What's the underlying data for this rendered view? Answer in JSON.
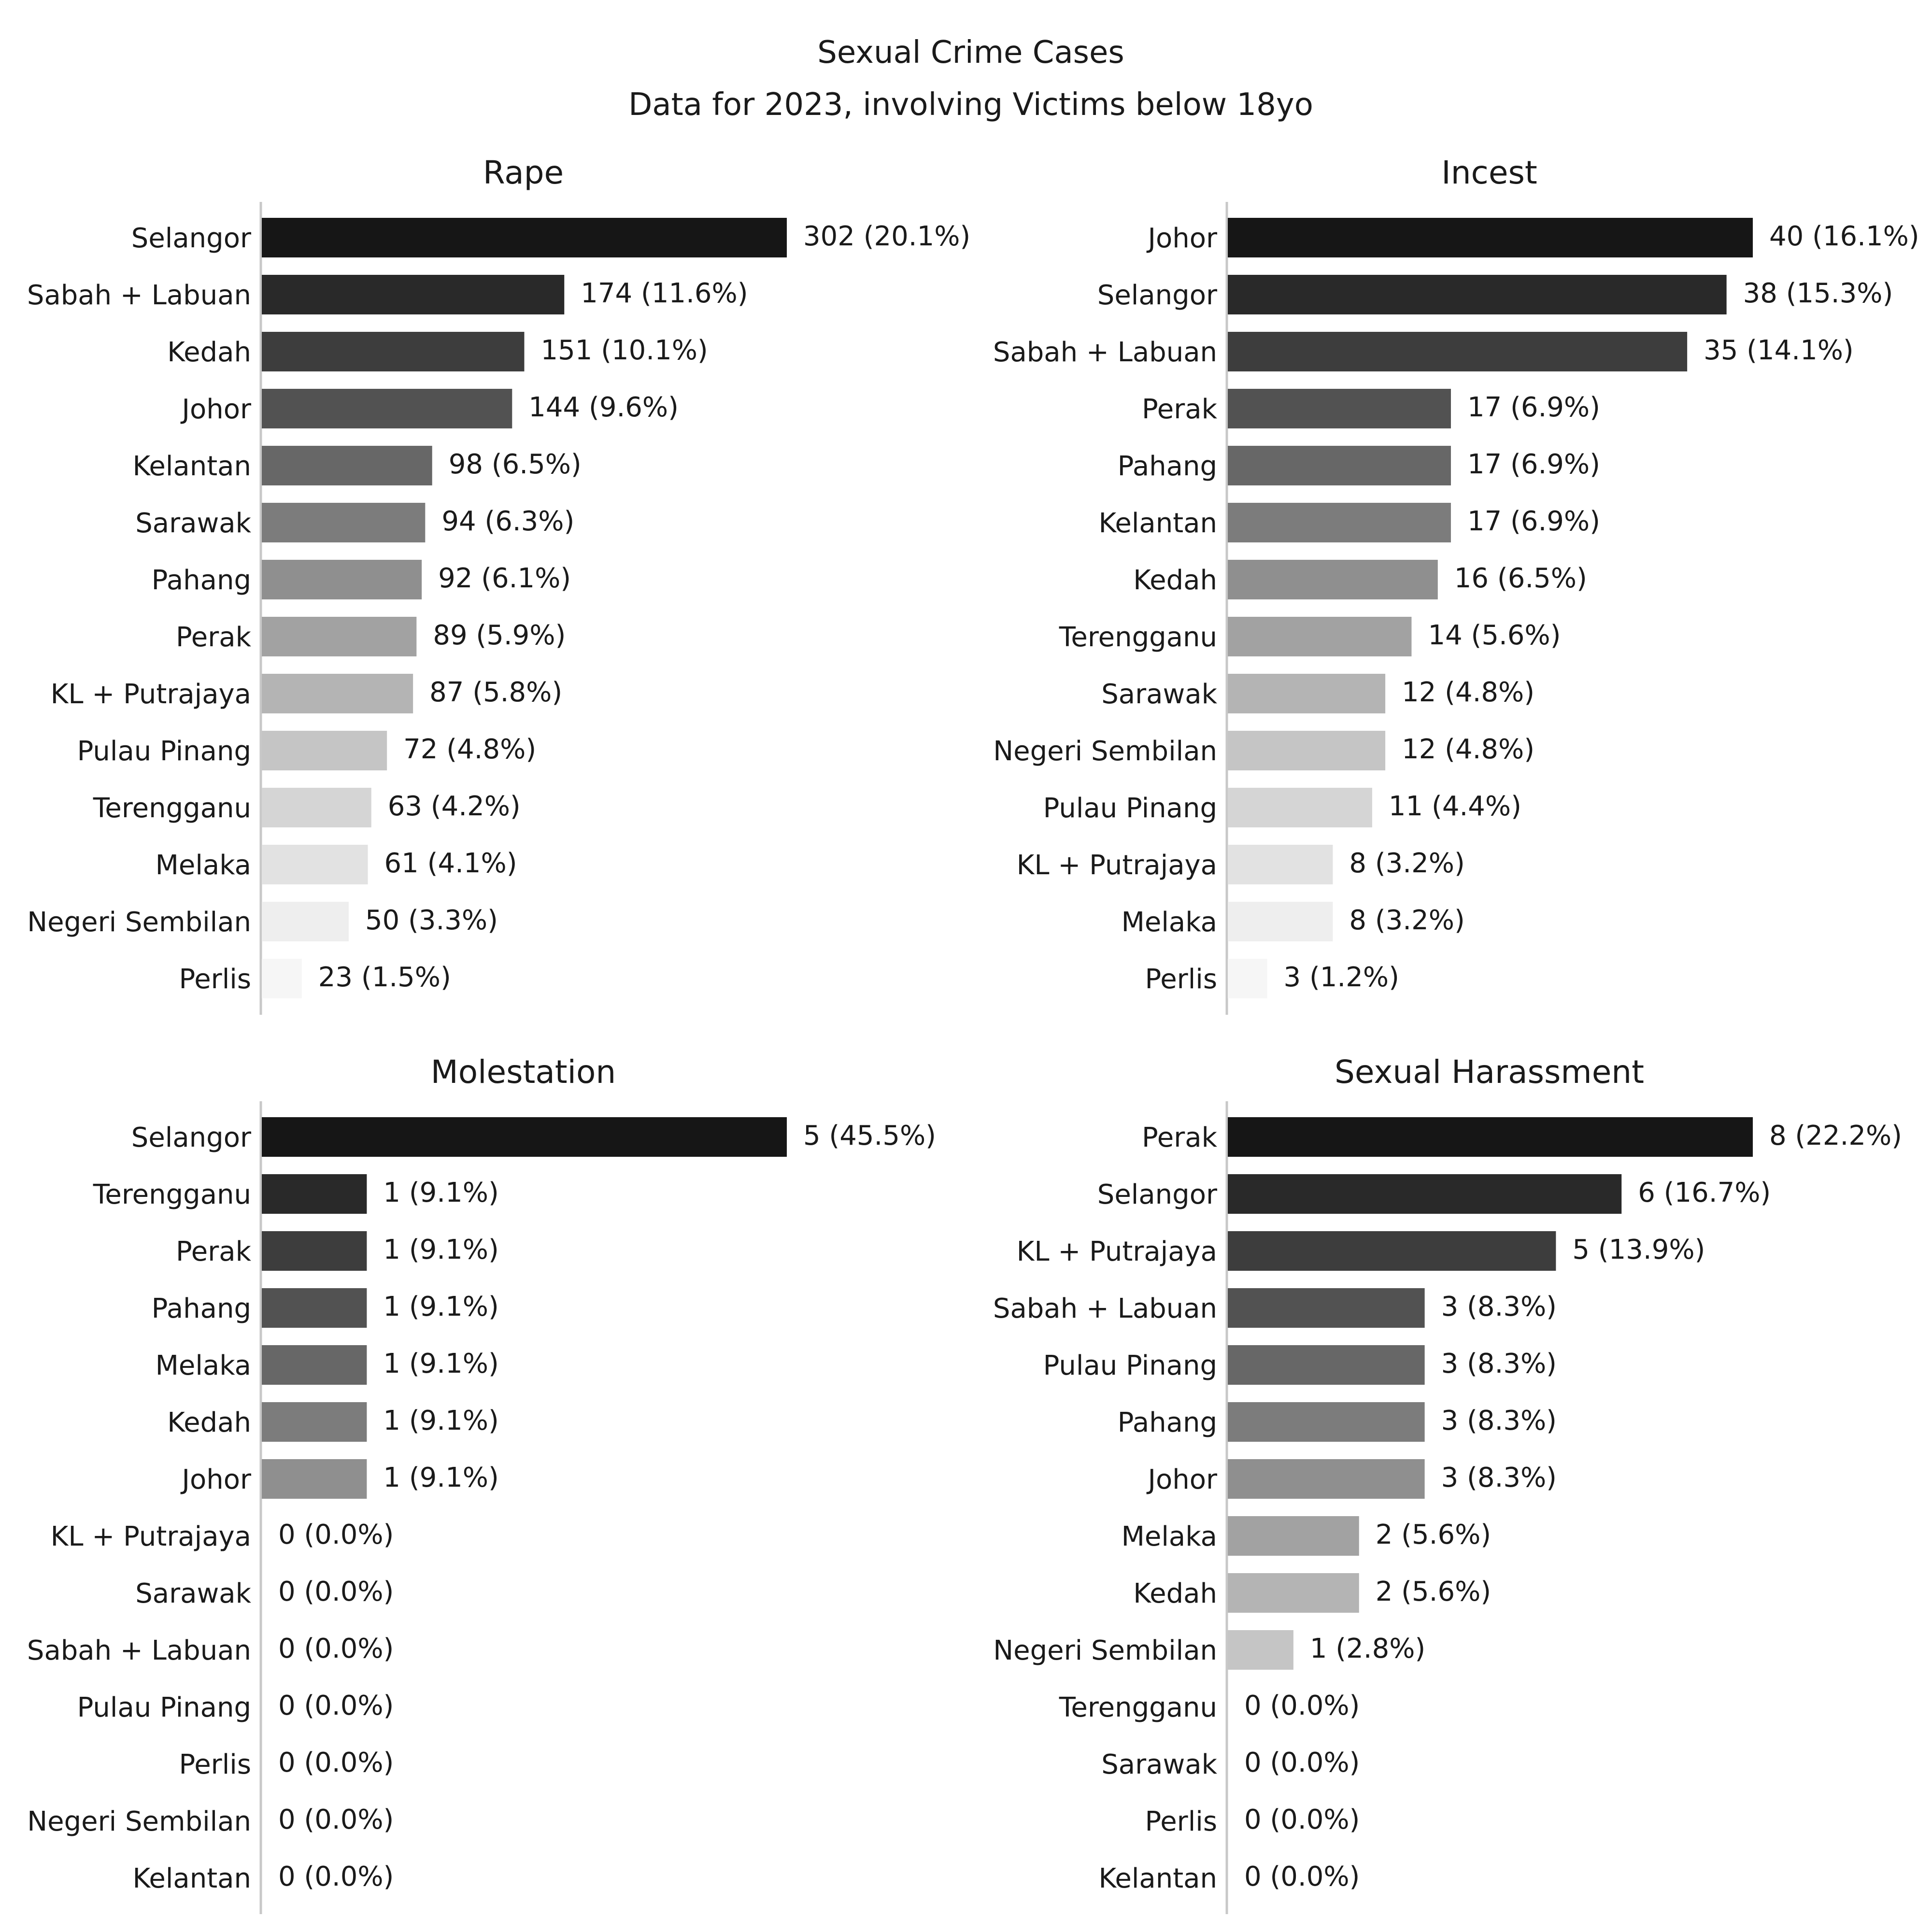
{
  "title": "Sexual Crime Cases",
  "subtitle": "Data for 2023, involving Victims below 18yo",
  "chart_data": [
    {
      "type": "bar",
      "orientation": "horizontal",
      "title": "Rape",
      "xlabel": "",
      "ylabel": "",
      "xlim": [
        0,
        302
      ],
      "grid": false,
      "categories": [
        "Selangor",
        "Sabah + Labuan",
        "Kedah",
        "Johor",
        "Kelantan",
        "Sarawak",
        "Pahang",
        "Perak",
        "KL + Putrajaya",
        "Pulau Pinang",
        "Terengganu",
        "Melaka",
        "Negeri Sembilan",
        "Perlis"
      ],
      "values": [
        302,
        174,
        151,
        144,
        98,
        94,
        92,
        89,
        87,
        72,
        63,
        61,
        50,
        23
      ],
      "labels": [
        "302 (20.1%)",
        "174 (11.6%)",
        "151 (10.1%)",
        "144 (9.6%)",
        "98 (6.5%)",
        "94 (6.3%)",
        "92 (6.1%)",
        "89 (5.9%)",
        "87 (5.8%)",
        "72 (4.8%)",
        "63 (4.2%)",
        "61 (4.1%)",
        "50 (3.3%)",
        "23 (1.5%)"
      ]
    },
    {
      "type": "bar",
      "orientation": "horizontal",
      "title": "Incest",
      "xlabel": "",
      "ylabel": "",
      "xlim": [
        0,
        40
      ],
      "grid": false,
      "categories": [
        "Johor",
        "Selangor",
        "Sabah + Labuan",
        "Perak",
        "Pahang",
        "Kelantan",
        "Kedah",
        "Terengganu",
        "Sarawak",
        "Negeri Sembilan",
        "Pulau Pinang",
        "KL + Putrajaya",
        "Melaka",
        "Perlis"
      ],
      "values": [
        40,
        38,
        35,
        17,
        17,
        17,
        16,
        14,
        12,
        12,
        11,
        8,
        8,
        3
      ],
      "labels": [
        "40 (16.1%)",
        "38 (15.3%)",
        "35 (14.1%)",
        "17 (6.9%)",
        "17 (6.9%)",
        "17 (6.9%)",
        "16 (6.5%)",
        "14 (5.6%)",
        "12 (4.8%)",
        "12 (4.8%)",
        "11 (4.4%)",
        "8 (3.2%)",
        "8 (3.2%)",
        "3 (1.2%)"
      ]
    },
    {
      "type": "bar",
      "orientation": "horizontal",
      "title": "Molestation",
      "xlabel": "",
      "ylabel": "",
      "xlim": [
        0,
        5
      ],
      "grid": false,
      "categories": [
        "Selangor",
        "Terengganu",
        "Perak",
        "Pahang",
        "Melaka",
        "Kedah",
        "Johor",
        "KL + Putrajaya",
        "Sarawak",
        "Sabah + Labuan",
        "Pulau Pinang",
        "Perlis",
        "Negeri Sembilan",
        "Kelantan"
      ],
      "values": [
        5,
        1,
        1,
        1,
        1,
        1,
        1,
        0,
        0,
        0,
        0,
        0,
        0,
        0
      ],
      "labels": [
        "5 (45.5%)",
        "1 (9.1%)",
        "1 (9.1%)",
        "1 (9.1%)",
        "1 (9.1%)",
        "1 (9.1%)",
        "1 (9.1%)",
        "0 (0.0%)",
        "0 (0.0%)",
        "0 (0.0%)",
        "0 (0.0%)",
        "0 (0.0%)",
        "0 (0.0%)",
        "0 (0.0%)"
      ]
    },
    {
      "type": "bar",
      "orientation": "horizontal",
      "title": "Sexual Harassment",
      "xlabel": "",
      "ylabel": "",
      "xlim": [
        0,
        8
      ],
      "grid": false,
      "categories": [
        "Perak",
        "Selangor",
        "KL + Putrajaya",
        "Sabah + Labuan",
        "Pulau Pinang",
        "Pahang",
        "Johor",
        "Melaka",
        "Kedah",
        "Negeri Sembilan",
        "Terengganu",
        "Sarawak",
        "Perlis",
        "Kelantan"
      ],
      "values": [
        8,
        6,
        5,
        3,
        3,
        3,
        3,
        2,
        2,
        1,
        0,
        0,
        0,
        0
      ],
      "labels": [
        "8 (22.2%)",
        "6 (16.7%)",
        "5 (13.9%)",
        "3 (8.3%)",
        "3 (8.3%)",
        "3 (8.3%)",
        "3 (8.3%)",
        "2 (5.6%)",
        "2 (5.6%)",
        "1 (2.8%)",
        "0 (0.0%)",
        "0 (0.0%)",
        "0 (0.0%)",
        "0 (0.0%)"
      ]
    }
  ],
  "colors": {
    "bar_shades": [
      "#161616",
      "#292929",
      "#3d3d3d",
      "#525252",
      "#676767",
      "#7c7c7c",
      "#8f8f8f",
      "#a2a2a2",
      "#b4b4b4",
      "#c5c5c5",
      "#d5d5d5",
      "#e2e2e2",
      "#eeeeee",
      "#f6f6f6"
    ],
    "spine": "#c8c8c8"
  }
}
